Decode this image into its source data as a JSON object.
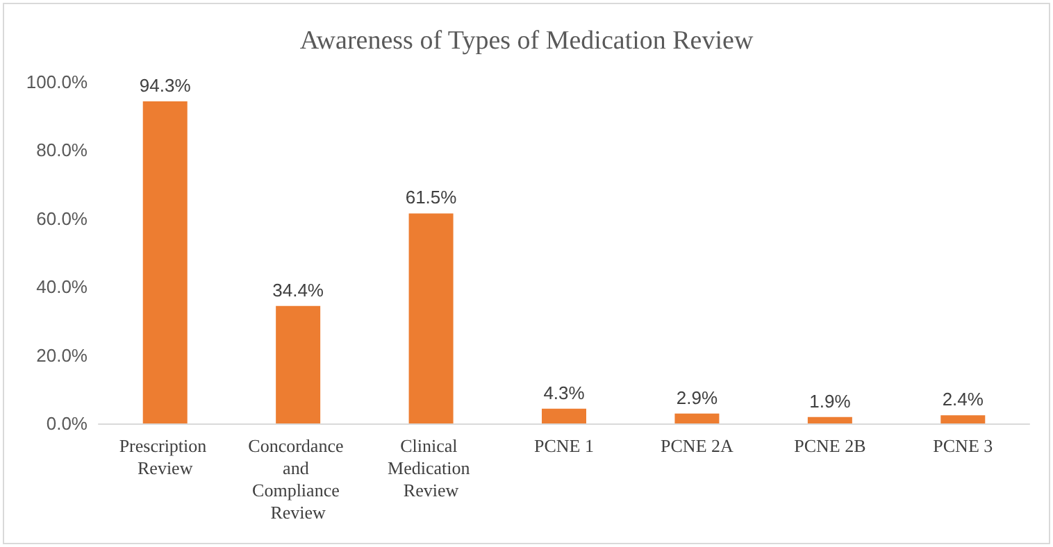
{
  "chart_data": {
    "type": "bar",
    "title": "Awareness of Types of Medication Review",
    "categories": [
      "Prescription Review",
      "Concordance and Compliance Review",
      "Clinical Medication Review",
      "PCNE 1",
      "PCNE 2A",
      "PCNE 2B",
      "PCNE 3"
    ],
    "values": [
      94.3,
      34.4,
      61.5,
      4.3,
      2.9,
      1.9,
      2.4
    ],
    "value_labels": [
      "94.3%",
      "34.4%",
      "61.5%",
      "4.3%",
      "2.9%",
      "1.9%",
      "2.4%"
    ],
    "color": "#ed7d31",
    "ylim": [
      0,
      100
    ],
    "yticks": [
      {
        "value": 0,
        "label": "0.0%"
      },
      {
        "value": 20,
        "label": "20.0%"
      },
      {
        "value": 40,
        "label": "40.0%"
      },
      {
        "value": 60,
        "label": "60.0%"
      },
      {
        "value": 80,
        "label": "80.0%"
      },
      {
        "value": 100,
        "label": "100.0%"
      }
    ],
    "grid": false
  }
}
